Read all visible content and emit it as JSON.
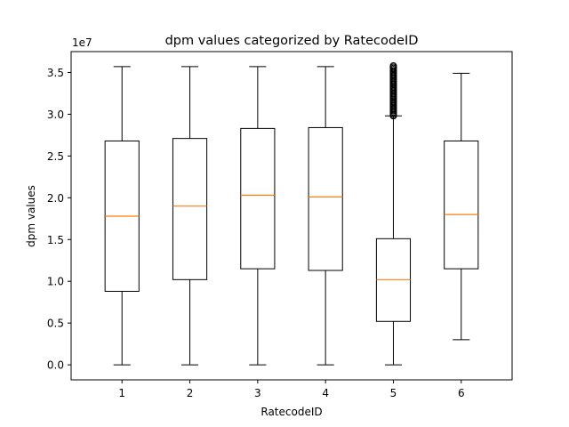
{
  "chart_data": {
    "type": "box",
    "title": "dpm values categorized by RatecodeID",
    "xlabel": "RatecodeID",
    "ylabel": "dpm values",
    "y_offset_label": "1e7",
    "ylim": [
      -1800000,
      37500000
    ],
    "categories": [
      "1",
      "2",
      "3",
      "4",
      "5",
      "6"
    ],
    "y_ticks": [
      {
        "value": 0,
        "label": "0.0"
      },
      {
        "value": 5000000,
        "label": "0.5"
      },
      {
        "value": 10000000,
        "label": "1.0"
      },
      {
        "value": 15000000,
        "label": "1.5"
      },
      {
        "value": 20000000,
        "label": "2.0"
      },
      {
        "value": 25000000,
        "label": "2.5"
      },
      {
        "value": 30000000,
        "label": "3.0"
      },
      {
        "value": 35000000,
        "label": "3.5"
      }
    ],
    "boxes": [
      {
        "category": "1",
        "whisker_low": 0,
        "q1": 8800000,
        "median": 17800000,
        "q3": 26800000,
        "whisker_high": 35700000
      },
      {
        "category": "2",
        "whisker_low": 0,
        "q1": 10200000,
        "median": 19000000,
        "q3": 27100000,
        "whisker_high": 35700000
      },
      {
        "category": "3",
        "whisker_low": 0,
        "q1": 11500000,
        "median": 20300000,
        "q3": 28300000,
        "whisker_high": 35700000
      },
      {
        "category": "4",
        "whisker_low": 0,
        "q1": 11300000,
        "median": 20100000,
        "q3": 28400000,
        "whisker_high": 35700000
      },
      {
        "category": "5",
        "whisker_low": 0,
        "q1": 5200000,
        "median": 10200000,
        "q3": 15100000,
        "whisker_high": 29800000,
        "outliers_range": [
          29800000,
          35800000
        ]
      },
      {
        "category": "6",
        "whisker_low": 3000000,
        "q1": 11500000,
        "median": 18000000,
        "q3": 26800000,
        "whisker_high": 34900000
      }
    ],
    "grid": false,
    "legend": "none",
    "colors": {
      "box": "#000000",
      "median": "#ff7f0e",
      "outlier": "#000000"
    }
  }
}
